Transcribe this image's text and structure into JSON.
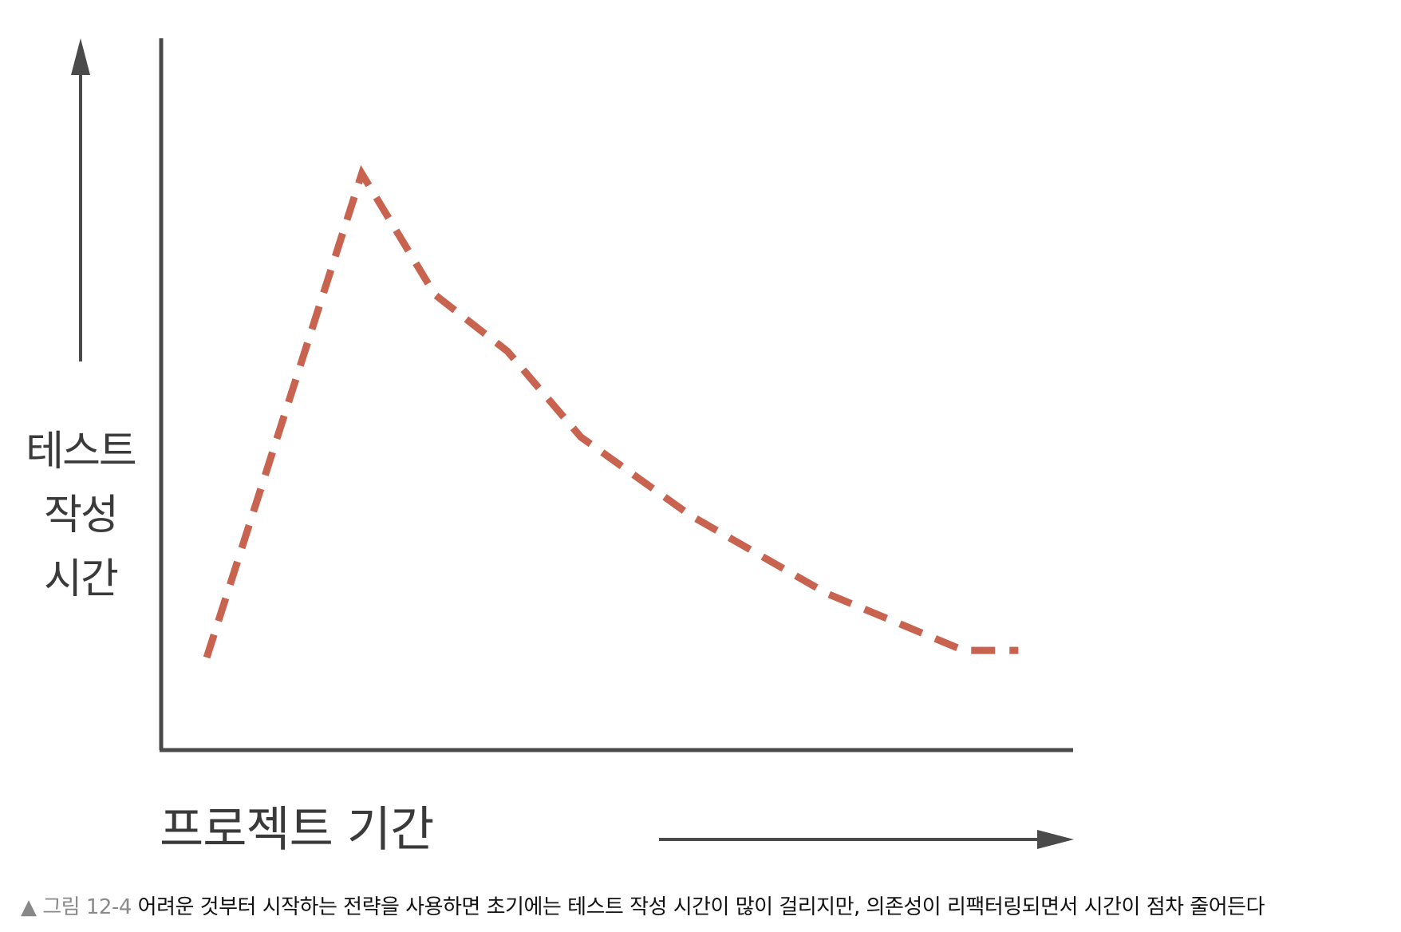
{
  "chart_data": {
    "type": "line",
    "ylabel": [
      "테스트",
      "작성",
      "시간"
    ],
    "xlabel": "프로젝트 기간",
    "axis_ticks": "none",
    "grid": false,
    "legend": "none",
    "line_style": "dashed",
    "colors": {
      "series": "#C8634F",
      "axis": "#4a4a4a"
    },
    "xlim": [
      0,
      100
    ],
    "ylim": [
      0,
      100
    ],
    "series": [
      {
        "x": [
          5,
          22,
          30,
          38,
          46,
          58,
          73,
          88,
          94
        ],
        "y": [
          13,
          81,
          64,
          56,
          44,
          33,
          22,
          14,
          14
        ]
      }
    ]
  },
  "caption": {
    "marker": "▲",
    "figure_label": "그림 12-4",
    "text": "어려운 것부터 시작하는 전략을 사용하면 초기에는 테스트 작성 시간이 많이 걸리지만, 의존성이 리팩터링되면서 시간이 점차 줄어든다"
  }
}
